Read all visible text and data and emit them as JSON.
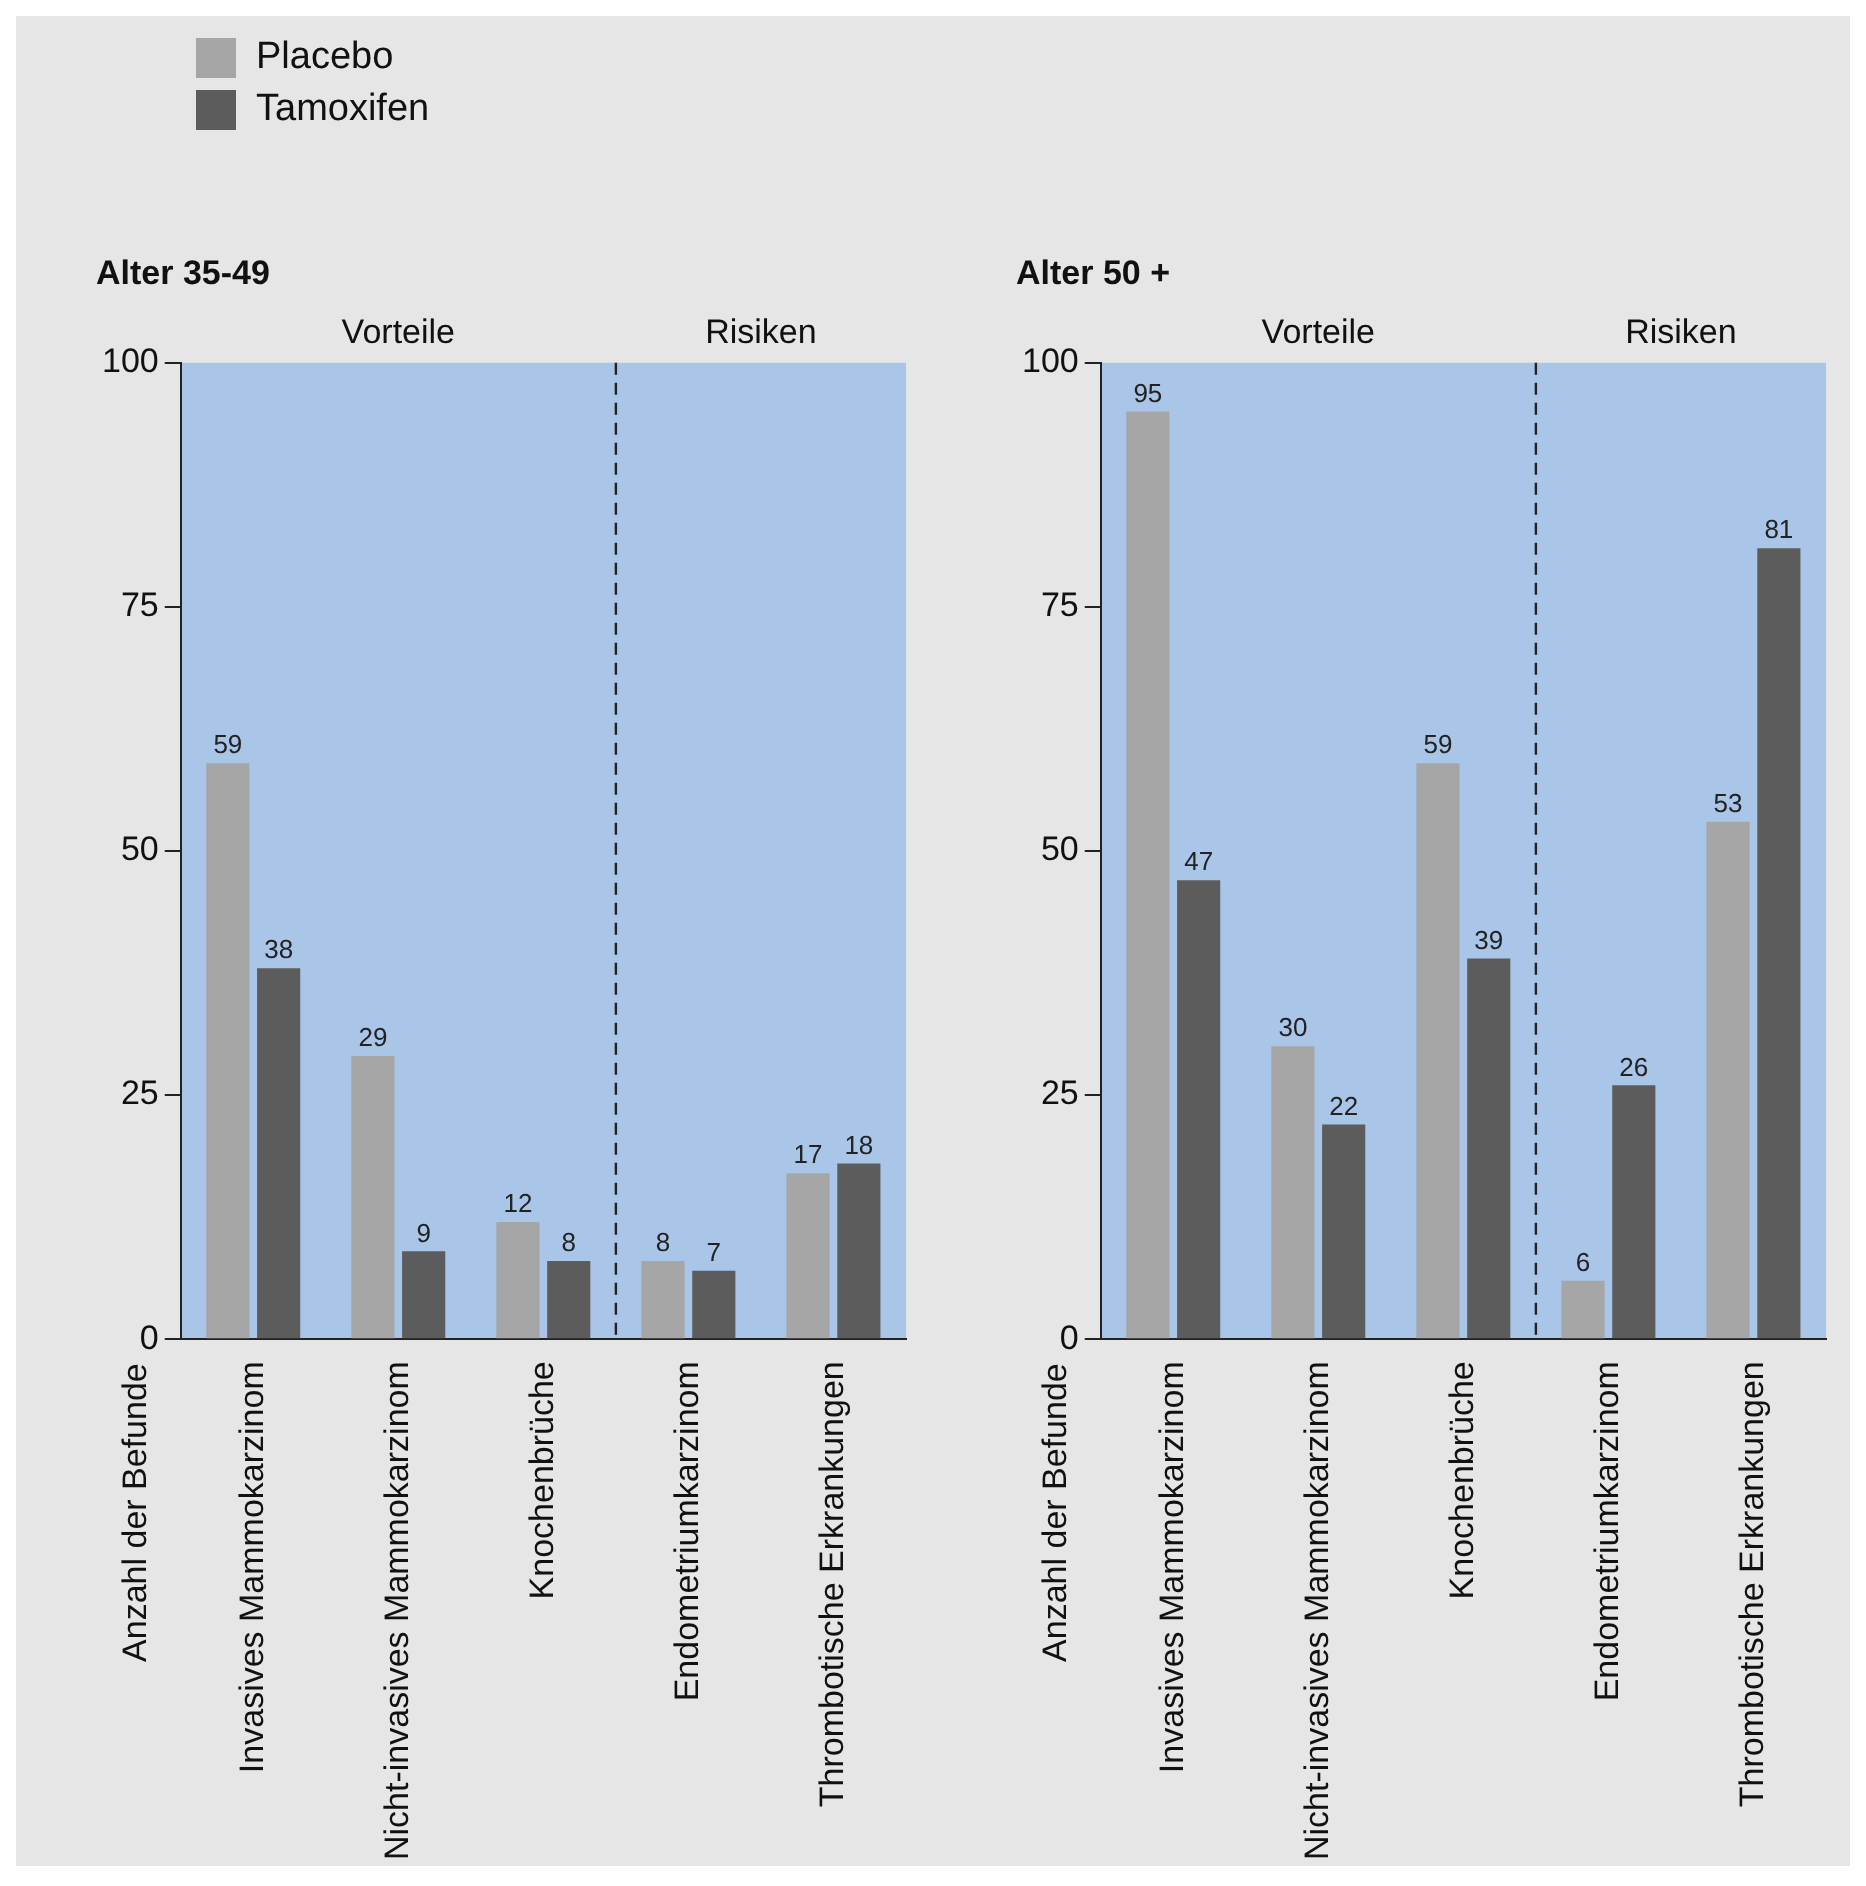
{
  "chart_data": [
    {
      "type": "bar",
      "title": "Alter 35-49",
      "ylabel": "Anzahl der Befunde",
      "categories": [
        "Invasives Mammokarzinom",
        "Nicht-invasives Mammokarzinom",
        "Knochenbrüche",
        "Endometriumkarzinom",
        "Thrombotische Erkrankungen"
      ],
      "series": [
        {
          "name": "Placebo",
          "color": "#a6a6a6",
          "values": [
            59,
            29,
            12,
            8,
            17
          ]
        },
        {
          "name": "Tamoxifen",
          "color": "#5c5c5c",
          "values": [
            38,
            9,
            8,
            7,
            18
          ]
        }
      ],
      "ylim": [
        0,
        100
      ],
      "yticks": [
        0,
        25,
        50,
        75,
        100
      ],
      "annotations": [
        "Vorteile",
        "Risiken"
      ],
      "data_labels": true,
      "legend": "top left",
      "grid": false
    },
    {
      "type": "bar",
      "title": "Alter 50 +",
      "ylabel": "Anzahl der Befunde",
      "categories": [
        "Invasives Mammokarzinom",
        "Nicht-invasives Mammokarzinom",
        "Knochenbrüche",
        "Endometriumkarzinom",
        "Thrombotische Erkrankungen"
      ],
      "series": [
        {
          "color": "#a6a6a6",
          "values": [
            95,
            30,
            59,
            6,
            53
          ]
        },
        {
          "color": "#5c5c5c",
          "values": [
            47,
            22,
            39,
            26,
            81
          ]
        }
      ],
      "ylim": [
        0,
        100
      ],
      "yticks": [
        0,
        25,
        50,
        75,
        100
      ],
      "annotations": [
        "Vorteile",
        "Risiken"
      ],
      "data_labels": true,
      "grid": false
    }
  ]
}
